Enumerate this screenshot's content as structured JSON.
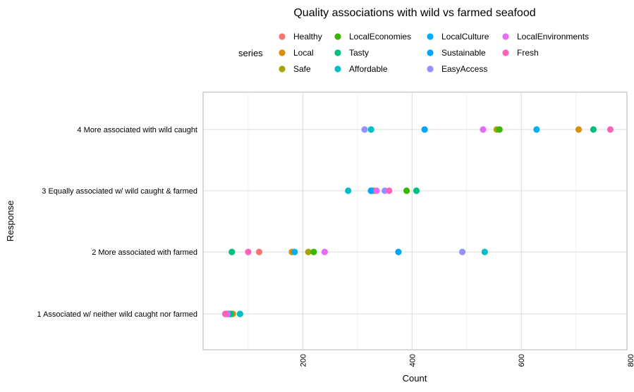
{
  "chart_data": {
    "type": "scatter",
    "title": "Quality associations with wild vs farmed seafood",
    "xlabel": "Count",
    "ylabel": "Response",
    "legend_title": "series",
    "legend_position": "top",
    "grid": true,
    "xlim": [
      0,
      800
    ],
    "xticks": [
      200,
      400,
      600,
      800
    ],
    "categories": [
      "1 Associated w/ neither wild caught nor farmed",
      "2 More associated with farmed",
      "3 Equally associated w/ wild caught & farmed",
      "4 More associated with wild caught"
    ],
    "series": [
      {
        "name": "Healthy",
        "color": "#F8766D",
        "values": [
          62,
          120,
          330,
          818
        ]
      },
      {
        "name": "Local",
        "color": "#D89000",
        "values": [
          72,
          180,
          325,
          705
        ]
      },
      {
        "name": "Safe",
        "color": "#A3A500",
        "values": [
          68,
          210,
          330,
          555
        ]
      },
      {
        "name": "LocalEconomies",
        "color": "#39B600",
        "values": [
          65,
          220,
          390,
          560
        ]
      },
      {
        "name": "Tasty",
        "color": "#00BF7D",
        "values": [
          68,
          70,
          408,
          732
        ]
      },
      {
        "name": "Affordable",
        "color": "#00BFC4",
        "values": [
          85,
          533,
          283,
          325
        ]
      },
      {
        "name": "LocalCulture",
        "color": "#00B0F6",
        "values": [
          63,
          185,
          325,
          628
        ]
      },
      {
        "name": "Sustainable",
        "color": "#00A5FF",
        "values": [
          63,
          375,
          325,
          423
        ]
      },
      {
        "name": "EasyAccess",
        "color": "#9590FF",
        "values": [
          62,
          492,
          350,
          313
        ]
      },
      {
        "name": "LocalEnvironments",
        "color": "#E76BF3",
        "values": [
          60,
          240,
          335,
          530
        ]
      },
      {
        "name": "Fresh",
        "color": "#FF62BC",
        "values": [
          58,
          100,
          358,
          763
        ]
      }
    ]
  }
}
